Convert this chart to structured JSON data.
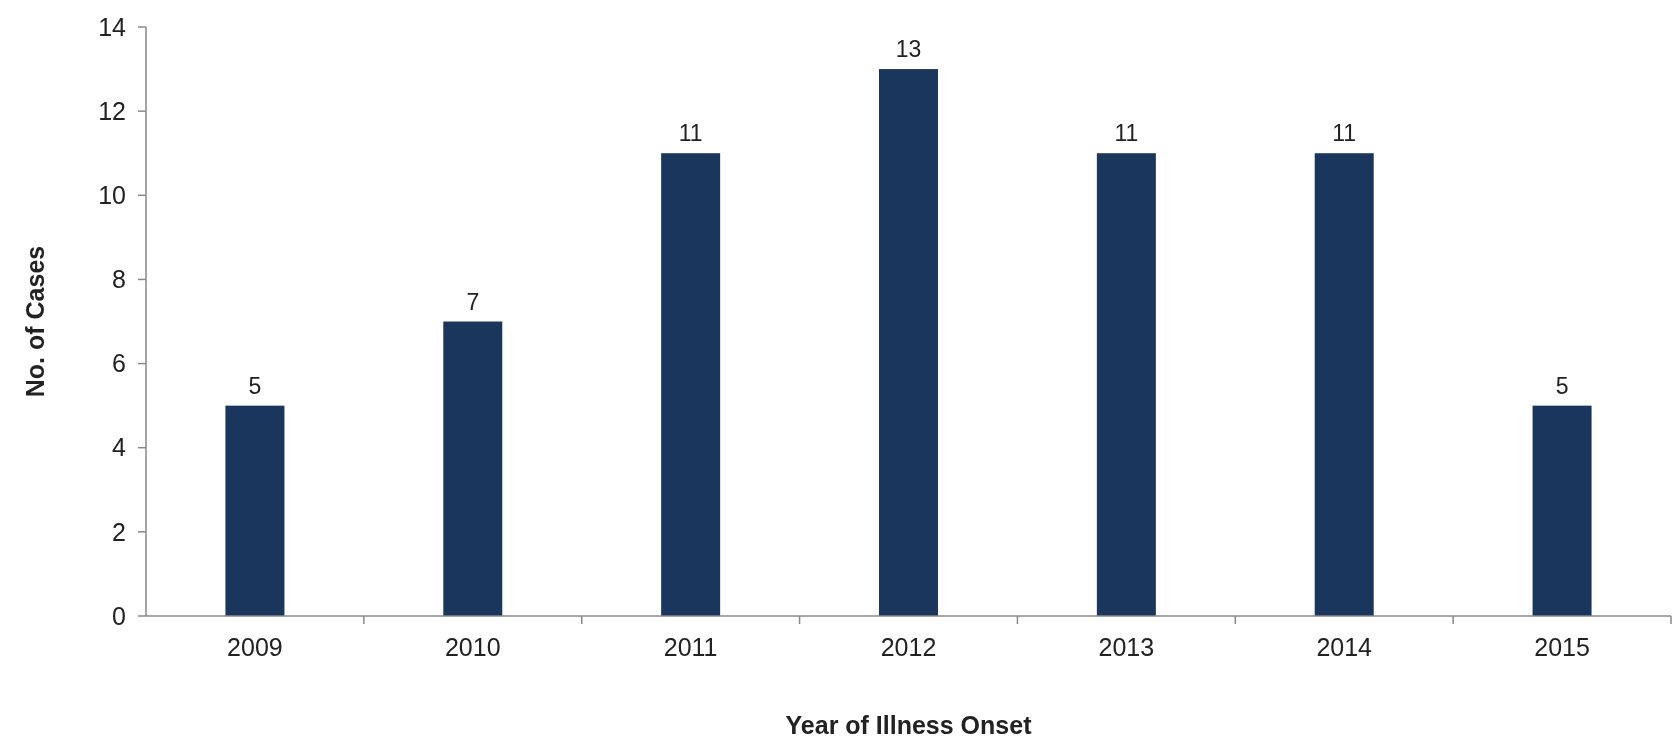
{
  "chart_data": {
    "type": "bar",
    "xlabel": "Year of Illness Onset",
    "ylabel": "No. of Cases",
    "categories": [
      "2009",
      "2010",
      "2011",
      "2012",
      "2013",
      "2014",
      "2015"
    ],
    "values": [
      5,
      7,
      11,
      13,
      11,
      11,
      5
    ],
    "color": "#1b365d",
    "ylim": [
      0,
      14
    ],
    "yticks": [
      0,
      2,
      4,
      6,
      8,
      10,
      12,
      14
    ],
    "grid": false,
    "data_labels": true
  }
}
